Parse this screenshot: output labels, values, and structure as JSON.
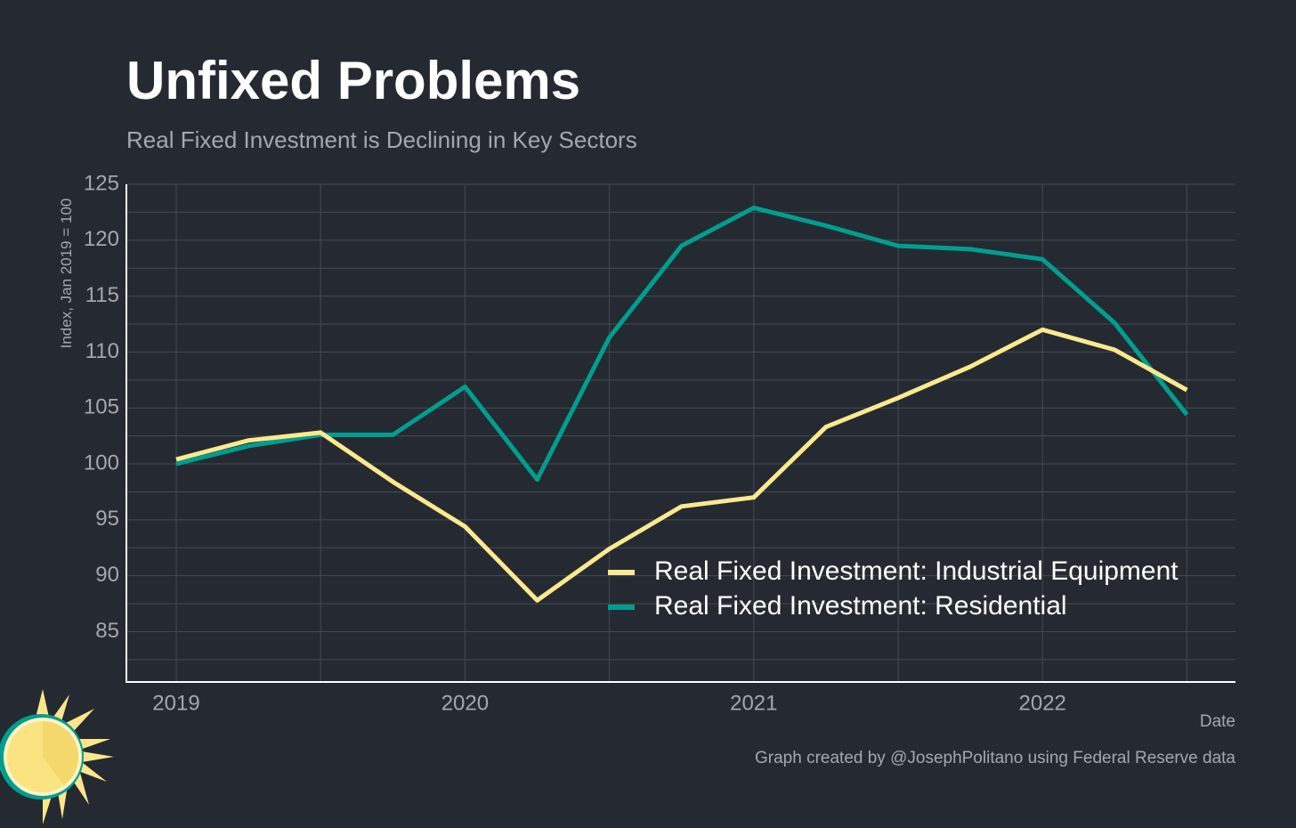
{
  "title": "Unfixed Problems",
  "subtitle": "Real Fixed Investment is Declining in Key Sectors",
  "caption": "Graph created by @JosephPolitano using Federal Reserve data",
  "colors": {
    "background": "#252a32",
    "industrial_equipment": "#fbe98e",
    "residential": "#009e8e"
  },
  "chart_data": {
    "type": "line",
    "title": "Unfixed Problems",
    "subtitle": "Real Fixed Investment is Declining in Key Sectors",
    "xlabel": "Date",
    "ylabel": "Index, Jan 2019 = 100",
    "x": [
      "2019-Q1",
      "2019-Q2",
      "2019-Q3",
      "2019-Q4",
      "2020-Q1",
      "2020-Q2",
      "2020-Q3",
      "2020-Q4",
      "2021-Q1",
      "2021-Q2",
      "2021-Q3",
      "2021-Q4",
      "2022-Q1",
      "2022-Q2",
      "2022-Q3"
    ],
    "x_tick_labels": [
      "2019",
      "2020",
      "2021",
      "2022"
    ],
    "y_ticks": [
      85,
      90,
      95,
      100,
      105,
      110,
      115,
      120,
      125
    ],
    "ylim": [
      80.5,
      125
    ],
    "grid": true,
    "legend_position": "bottom-right",
    "series": [
      {
        "name": "Real Fixed Investment: Industrial Equipment",
        "color": "#fbe98e",
        "values": [
          100.4,
          102.1,
          102.8,
          98.4,
          94.4,
          87.8,
          92.4,
          96.2,
          97.0,
          103.3,
          105.9,
          108.7,
          112.0,
          110.2,
          106.6
        ]
      },
      {
        "name": "Real Fixed Investment: Residential",
        "color": "#009e8e",
        "values": [
          100.0,
          101.6,
          102.6,
          102.6,
          106.9,
          98.6,
          111.3,
          119.5,
          122.9,
          121.3,
          119.5,
          119.2,
          118.3,
          112.6,
          104.4
        ]
      }
    ]
  }
}
